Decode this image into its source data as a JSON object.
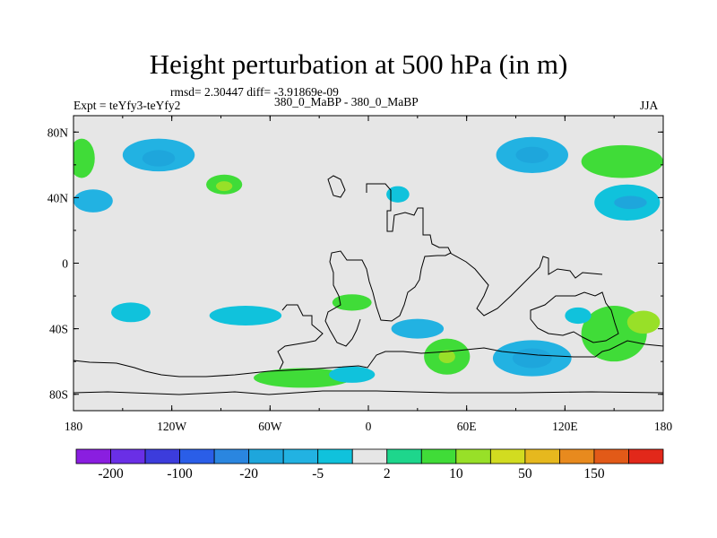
{
  "title": "Height perturbation at 500 hPa (in m)",
  "stats_text": "rmsd= 2.30447 diff= -3.91869e-09",
  "experiment": "Expt = teYfy3-teYfy2",
  "comparison": "380_0_MaBP - 380_0_MaBP",
  "season": "JJA",
  "chart_data": {
    "type": "heatmap",
    "variable": "Height perturbation at 500 hPa",
    "units": "m",
    "x_axis": {
      "min": -180,
      "max": 180,
      "ticks": [
        -180,
        -120,
        -60,
        0,
        60,
        120,
        180
      ],
      "tick_labels": [
        "180",
        "120W",
        "60W",
        "0",
        "60E",
        "120E",
        "180"
      ]
    },
    "y_axis": {
      "min": -90,
      "max": 90,
      "ticks": [
        80,
        40,
        0,
        -40,
        -80
      ],
      "tick_labels": [
        "80N",
        "40N",
        "0",
        "40S",
        "80S"
      ]
    },
    "colorbar": {
      "levels": [
        -200,
        -150,
        -100,
        -50,
        -20,
        -10,
        -5,
        -2,
        2,
        5,
        10,
        20,
        50,
        100,
        150,
        200
      ],
      "labels": [
        "-200",
        "-100",
        "-20",
        "-5",
        "2",
        "10",
        "50",
        "150"
      ],
      "colors": [
        "#8a1ee0",
        "#6a2fe6",
        "#3c3cdc",
        "#2a5ee8",
        "#2a86e0",
        "#1ea6dc",
        "#22b2e2",
        "#10c2dc",
        "#e6e6e6",
        "#1ed68c",
        "#40dc38",
        "#98e028",
        "#d2dc20",
        "#e6b81e",
        "#e88a1e",
        "#e25a18",
        "#e2281a"
      ],
      "background_color": "#e6e6e6"
    },
    "regions": [
      {
        "name": "NPac low",
        "lon": -128,
        "lat": 66,
        "rlon": 22,
        "rlat": 10,
        "value": -7
      },
      {
        "name": "NPac low core",
        "lon": -128,
        "lat": 64,
        "rlon": 10,
        "rlat": 5,
        "value": -12
      },
      {
        "name": "NAtl high",
        "lon": -88,
        "lat": 48,
        "rlon": 11,
        "rlat": 6,
        "value": 8
      },
      {
        "name": "NAtl high core",
        "lon": -88,
        "lat": 47,
        "rlon": 5,
        "rlat": 3,
        "value": 12
      },
      {
        "name": "Asia low",
        "lon": 100,
        "lat": 66,
        "rlon": 22,
        "rlat": 11,
        "value": -6
      },
      {
        "name": "Asia low core",
        "lon": 100,
        "lat": 66,
        "rlon": 10,
        "rlat": 5,
        "value": -12
      },
      {
        "name": "NW Pac high",
        "lon": 155,
        "lat": 62,
        "rlon": 25,
        "rlat": 10,
        "value": 6
      },
      {
        "name": "NW Pac low",
        "lon": 158,
        "lat": 37,
        "rlon": 20,
        "rlat": 11,
        "value": -5
      },
      {
        "name": "NW Pac low core",
        "lon": 160,
        "lat": 37,
        "rlon": 10,
        "rlat": 4,
        "value": -12
      },
      {
        "name": "Pacific low lat",
        "lon": -168,
        "lat": 38,
        "rlon": 12,
        "rlat": 7,
        "value": -7
      },
      {
        "name": "Pacific high lat",
        "lon": -175,
        "lat": 64,
        "rlon": 8,
        "rlat": 12,
        "value": 7
      },
      {
        "name": "Europe low",
        "lon": 18,
        "lat": 42,
        "rlon": 7,
        "rlat": 5,
        "value": -5
      },
      {
        "name": "South SW Pac low",
        "lon": -145,
        "lat": -30,
        "rlon": 12,
        "rlat": 6,
        "value": -5
      },
      {
        "name": "S Pac low",
        "lon": -75,
        "lat": -32,
        "rlon": 22,
        "rlat": 6,
        "value": -5
      },
      {
        "name": "S Atl high",
        "lon": -10,
        "lat": -24,
        "rlon": 12,
        "rlat": 5,
        "value": 5
      },
      {
        "name": "S Ind low",
        "lon": 30,
        "lat": -40,
        "rlon": 16,
        "rlat": 6,
        "value": -6
      },
      {
        "name": "S Ind high",
        "lon": 48,
        "lat": -57,
        "rlon": 14,
        "rlat": 11,
        "value": 6
      },
      {
        "name": "S Ind high core",
        "lon": 48,
        "lat": -57,
        "rlon": 5,
        "rlat": 4,
        "value": 12
      },
      {
        "name": "Aus low",
        "lon": 100,
        "lat": -58,
        "rlon": 24,
        "rlat": 11,
        "value": -6
      },
      {
        "name": "Aus low core",
        "lon": 100,
        "lat": -58,
        "rlon": 12,
        "rlat": 6,
        "value": -12
      },
      {
        "name": "SW Pac high",
        "lon": 150,
        "lat": -43,
        "rlon": 20,
        "rlat": 17,
        "value": 6
      },
      {
        "name": "SW Pac high core",
        "lon": 168,
        "lat": -36,
        "rlon": 10,
        "rlat": 7,
        "value": 12
      },
      {
        "name": "SE Pac low",
        "lon": 128,
        "lat": -32,
        "rlon": 8,
        "rlat": 5,
        "value": -5
      },
      {
        "name": "Antarctic high",
        "lon": -40,
        "lat": -70,
        "rlon": 30,
        "rlat": 6,
        "value": 5
      },
      {
        "name": "Antarctic low",
        "lon": -10,
        "lat": -68,
        "rlon": 14,
        "rlat": 5,
        "value": -5
      }
    ]
  }
}
